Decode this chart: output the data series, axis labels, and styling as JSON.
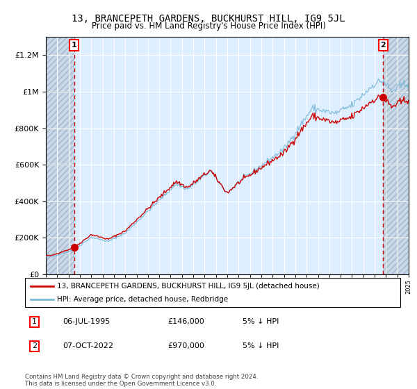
{
  "title": "13, BRANCEPETH GARDENS, BUCKHURST HILL, IG9 5JL",
  "subtitle": "Price paid vs. HM Land Registry's House Price Index (HPI)",
  "legend_entry1": "13, BRANCEPETH GARDENS, BUCKHURST HILL, IG9 5JL (detached house)",
  "legend_entry2": "HPI: Average price, detached house, Redbridge",
  "annotation1_label": "1",
  "annotation1_date": "06-JUL-1995",
  "annotation1_price": "£146,000",
  "annotation1_hpi": "5% ↓ HPI",
  "annotation2_label": "2",
  "annotation2_date": "07-OCT-2022",
  "annotation2_price": "£970,000",
  "annotation2_hpi": "5% ↓ HPI",
  "footer": "Contains HM Land Registry data © Crown copyright and database right 2024.\nThis data is licensed under the Open Government Licence v3.0.",
  "sale1_year": 1995.5,
  "sale1_value": 146000,
  "sale2_year": 2022.75,
  "sale2_value": 970000,
  "hpi_color": "#7ab8d8",
  "price_color": "#cc0000",
  "dashed_color": "#cc0000",
  "ylim_max": 1300000,
  "ylim_min": 0,
  "xlim_min": 1993,
  "xlim_max": 2025,
  "chart_bg": "#ddeeff"
}
